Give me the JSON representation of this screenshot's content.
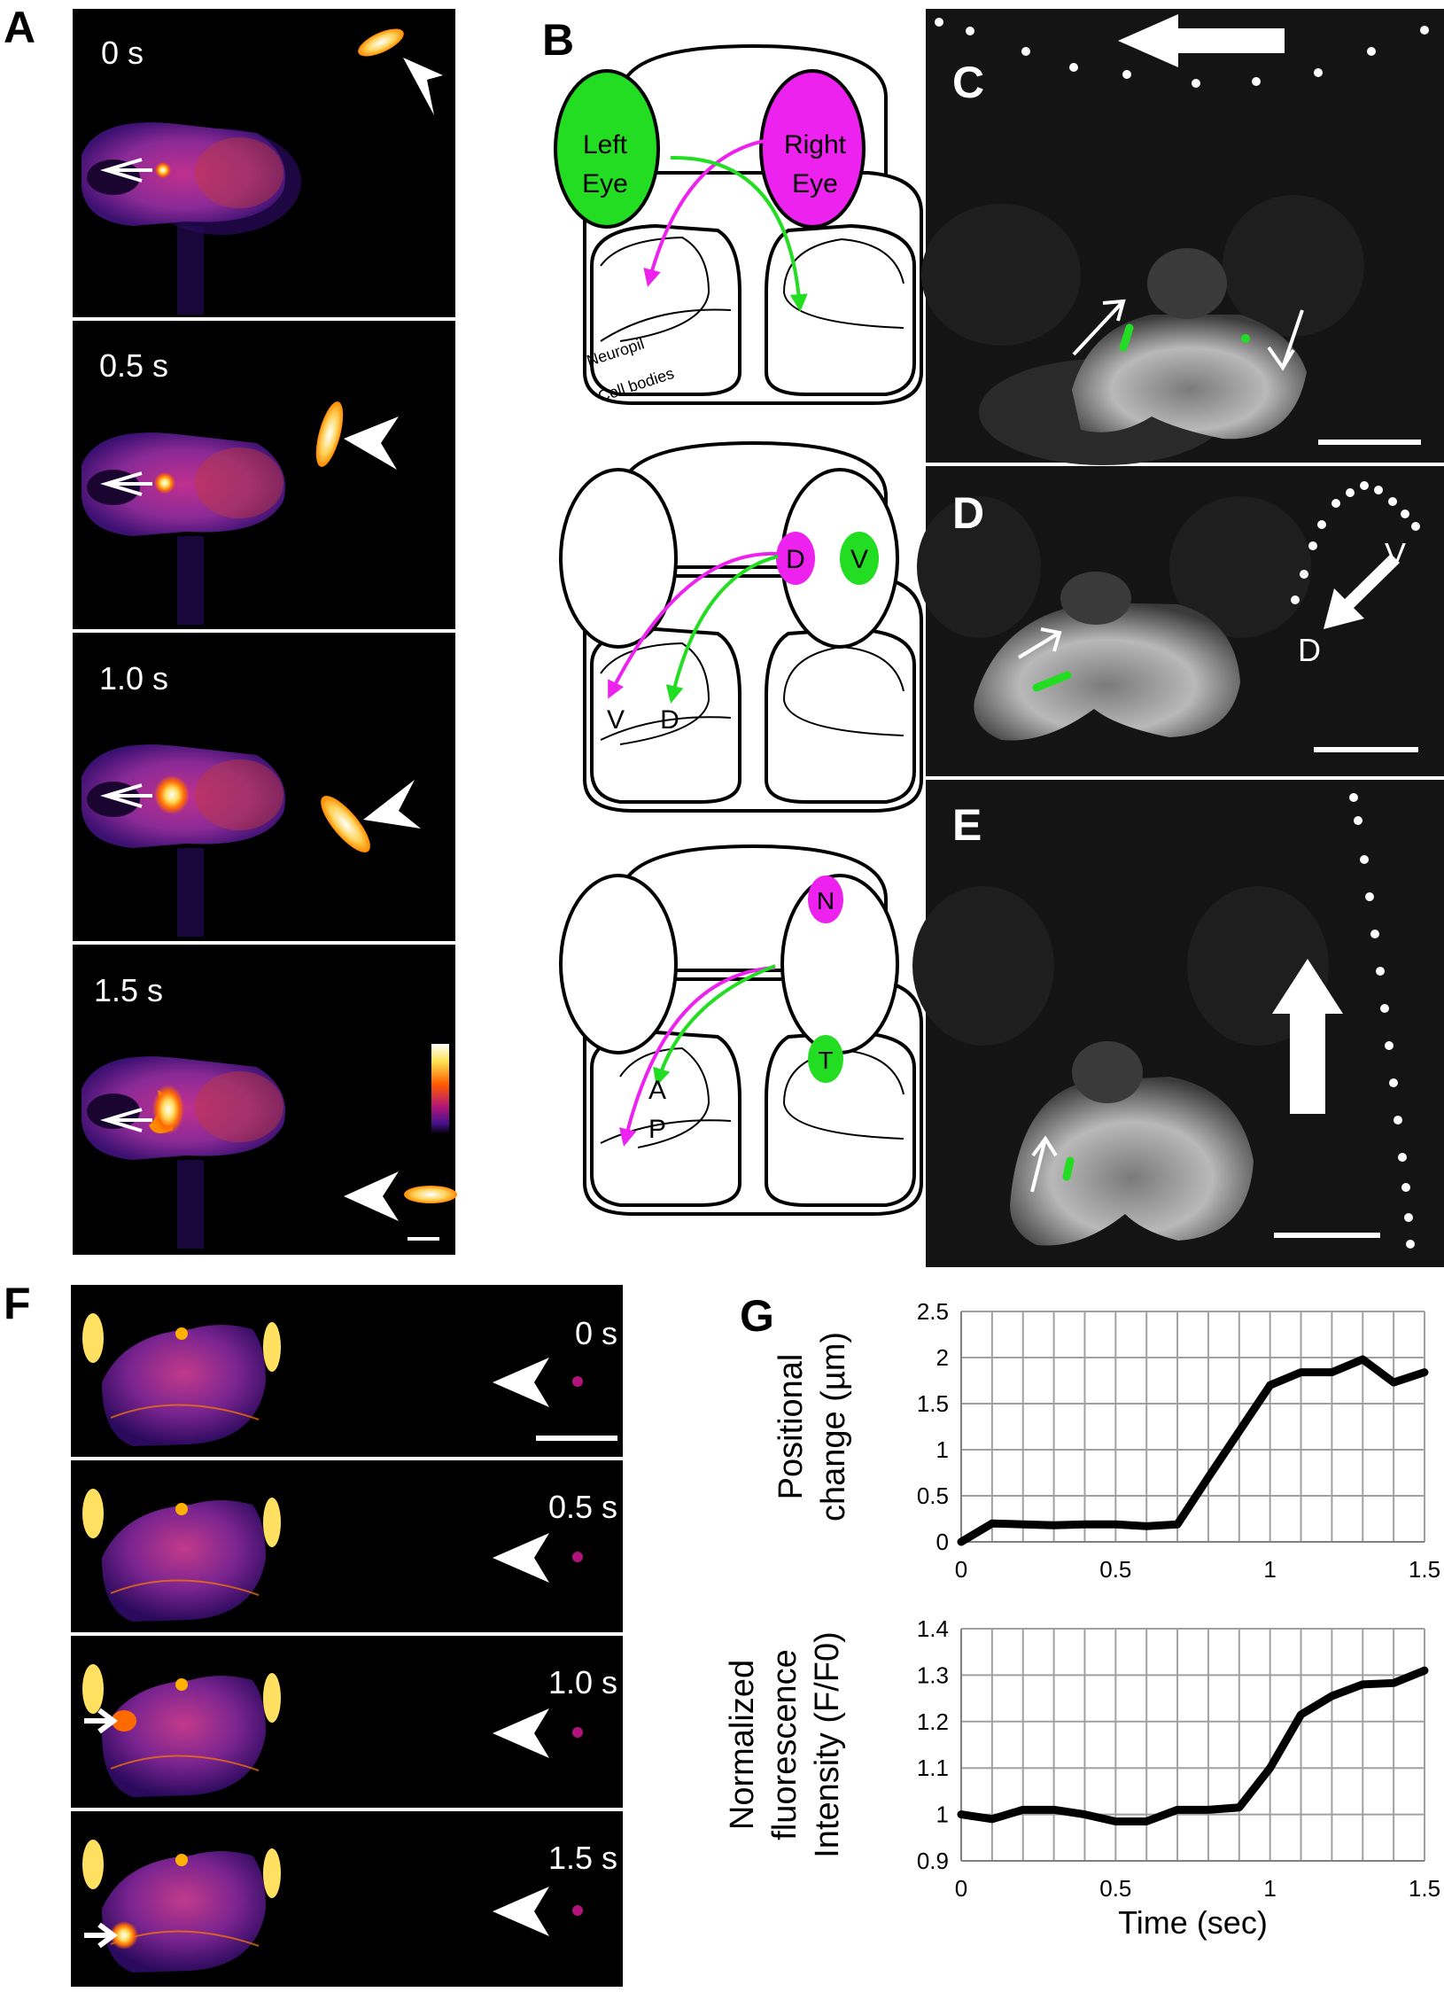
{
  "panels": {
    "A": {
      "letter": "A",
      "frames": [
        {
          "time": "0 s"
        },
        {
          "time": "0.5 s"
        },
        {
          "time": "1.0 s"
        },
        {
          "time": "1.5 s"
        }
      ]
    },
    "B": {
      "letter": "B",
      "top": {
        "left_eye": [
          "Left",
          "Eye"
        ],
        "right_eye": [
          "Right",
          "Eye"
        ],
        "neuropil": "Neuropil",
        "cell_bodies": "Cell bodies"
      },
      "middle": {
        "eye_d": "D",
        "eye_v": "V",
        "tectum_v": "V",
        "tectum_d": "D"
      },
      "bottom": {
        "eye_n": "N",
        "eye_t": "T",
        "tectum_a": "A",
        "tectum_p": "P"
      }
    },
    "C": {
      "letter": "C"
    },
    "D": {
      "letter": "D",
      "label_v": "V",
      "label_d": "D"
    },
    "E": {
      "letter": "E"
    },
    "F": {
      "letter": "F",
      "frames": [
        {
          "time": "0 s"
        },
        {
          "time": "0.5 s"
        },
        {
          "time": "1.0 s"
        },
        {
          "time": "1.5 s"
        }
      ]
    },
    "G": {
      "letter": "G"
    }
  },
  "colors": {
    "green": "#22dd22",
    "magenta": "#ee22ee",
    "dark_bg": "#000000",
    "gray_bg": "#141414"
  },
  "chart_data": [
    {
      "type": "line",
      "ylabel_lines": [
        "Positional",
        "change (µm)"
      ],
      "xlabel": "",
      "x": [
        0,
        0.1,
        0.2,
        0.3,
        0.4,
        0.5,
        0.6,
        0.7,
        0.8,
        0.9,
        1.0,
        1.1,
        1.2,
        1.3,
        1.4,
        1.5
      ],
      "series": [
        {
          "values": [
            0.0,
            0.2,
            0.19,
            0.18,
            0.19,
            0.19,
            0.17,
            0.19,
            0.7,
            1.2,
            1.7,
            1.84,
            1.84,
            1.98,
            1.73,
            1.84
          ]
        }
      ],
      "xlim": [
        0,
        1.5
      ],
      "ylim": [
        0,
        2.5
      ],
      "xticks": [
        "0",
        "0.5",
        "1",
        "1.5"
      ],
      "yticks": [
        "0",
        "0.5",
        "1",
        "1.5",
        "2",
        "2.5"
      ],
      "grid": true
    },
    {
      "type": "line",
      "ylabel_lines": [
        "Normalized",
        "fluorescence",
        "Intensity  (F/F0)"
      ],
      "xlabel": "Time (sec)",
      "x": [
        0,
        0.1,
        0.2,
        0.3,
        0.4,
        0.5,
        0.6,
        0.7,
        0.8,
        0.9,
        1.0,
        1.1,
        1.2,
        1.3,
        1.4,
        1.5
      ],
      "series": [
        {
          "values": [
            1.0,
            0.99,
            1.01,
            1.01,
            1.0,
            0.985,
            0.985,
            1.01,
            1.01,
            1.015,
            1.1,
            1.215,
            1.255,
            1.28,
            1.283,
            1.31
          ]
        }
      ],
      "xlim": [
        0,
        1.5
      ],
      "ylim": [
        0.9,
        1.4
      ],
      "xticks": [
        "0",
        "0.5",
        "1",
        "1.5"
      ],
      "yticks": [
        "0.9",
        "1",
        "1.1",
        "1.2",
        "1.3",
        "1.4"
      ],
      "grid": true
    }
  ]
}
